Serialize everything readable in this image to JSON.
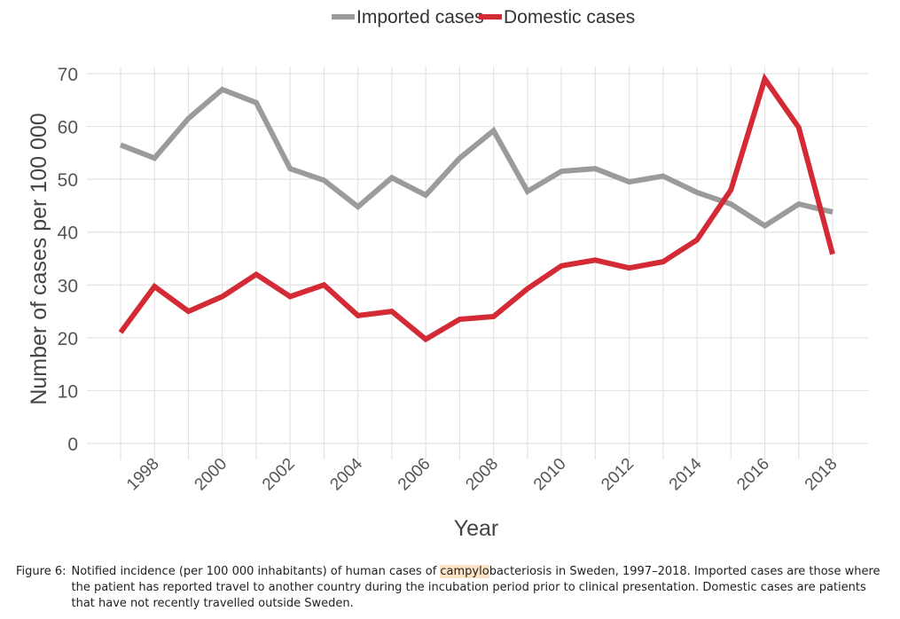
{
  "chart_data": {
    "type": "line",
    "title": "",
    "xlabel": "Year",
    "ylabel": "Number of cases per 100 000",
    "x": [
      1997,
      1998,
      1999,
      2000,
      2001,
      2002,
      2003,
      2004,
      2005,
      2006,
      2007,
      2008,
      2009,
      2010,
      2011,
      2012,
      2013,
      2014,
      2015,
      2016,
      2017,
      2018
    ],
    "x_tick_labels": [
      "1998",
      "2000",
      "2002",
      "2004",
      "2006",
      "2008",
      "2010",
      "2012",
      "2014",
      "2016",
      "2018"
    ],
    "y_tick_labels": [
      "0",
      "10",
      "20",
      "30",
      "40",
      "50",
      "60",
      "70"
    ],
    "ylim": [
      0,
      70
    ],
    "grid": true,
    "legend_position": "top-center",
    "series": [
      {
        "name": "Imported cases",
        "color": "#9b9b9b",
        "values": [
          56.5,
          54,
          61.5,
          67,
          64.5,
          52,
          49.8,
          44.8,
          50.3,
          47,
          54,
          59.2,
          47.7,
          51.5,
          52,
          49.5,
          50.6,
          47.5,
          45.3,
          41.2,
          45.3,
          43.8
        ]
      },
      {
        "name": "Domestic cases",
        "color": "#d42a35",
        "values": [
          21,
          29.7,
          25,
          27.8,
          32,
          27.8,
          30,
          24.2,
          25,
          19.7,
          23.5,
          24,
          29.3,
          33.6,
          34.7,
          33.2,
          34.4,
          38.5,
          48,
          69,
          59.8,
          35.8
        ]
      }
    ]
  },
  "caption": {
    "label": "Figure 6:",
    "before_highlight": "Notified incidence (per 100 000 inhabitants) of human cases of ",
    "highlight": "campylo",
    "after_highlight": "bacteriosis in Sweden, 1997–2018.  Imported cases are those where the patient has reported travel to another country during the incubation period prior to clinical presentation.  Domestic cases are patients that have not recently travelled outside Sweden."
  }
}
